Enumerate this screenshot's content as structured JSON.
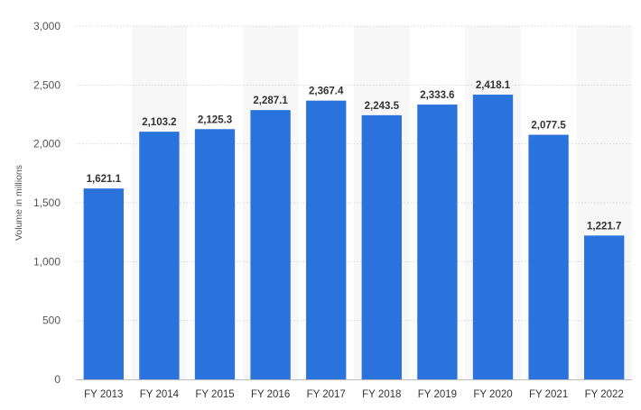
{
  "chart_data": {
    "type": "bar",
    "categories": [
      "FY 2013",
      "FY 2014",
      "FY 2015",
      "FY 2016",
      "FY 2017",
      "FY 2018",
      "FY 2019",
      "FY 2020",
      "FY 2021",
      "FY 2022"
    ],
    "values": [
      1621.1,
      2103.2,
      2125.3,
      2287.1,
      2367.4,
      2243.5,
      2333.6,
      2418.1,
      2077.5,
      1221.7
    ],
    "value_labels": [
      "1,621.1",
      "2,103.2",
      "2,125.3",
      "2,287.1",
      "2,367.4",
      "2,243.5",
      "2,333.6",
      "2,418.1",
      "2,077.5",
      "1,221.7"
    ],
    "title": "",
    "xlabel": "",
    "ylabel": "Volume in millions",
    "ylim": [
      0,
      3000
    ],
    "yticks": [
      0,
      500,
      1000,
      1500,
      2000,
      2500,
      3000
    ],
    "ytick_labels": [
      "0",
      "500",
      "1,000",
      "1,500",
      "2,000",
      "2,500",
      "3,000"
    ],
    "grid": true,
    "legend": "none",
    "colors": {
      "bar": "#2b73dc",
      "alt_band": "#f7f7f7",
      "grid": "#d6d6d6",
      "axis": "#bbbbbb"
    }
  }
}
